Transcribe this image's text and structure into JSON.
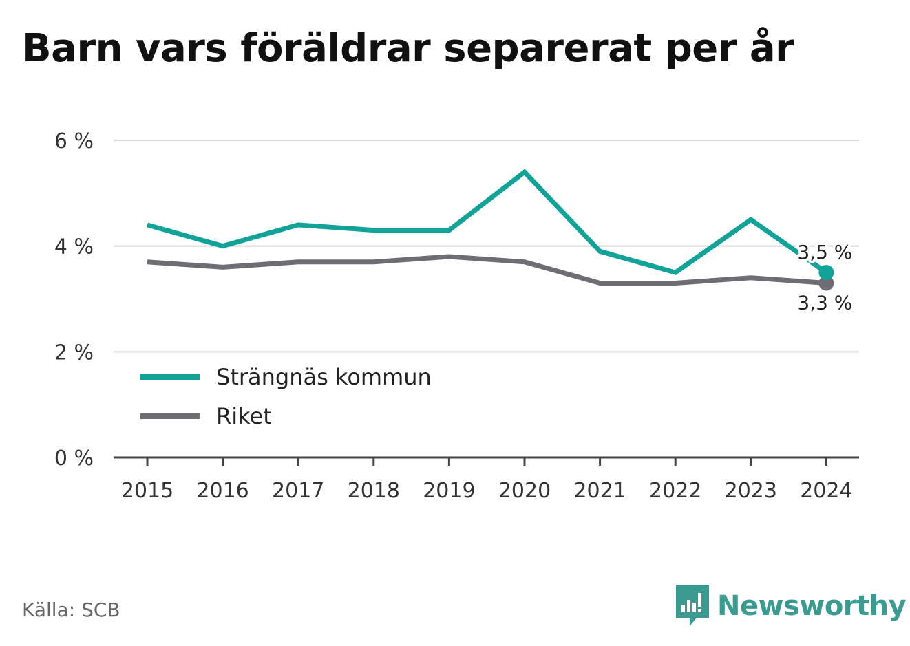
{
  "title": "Barn vars föräldrar separerat per år",
  "source": "Källa: SCB",
  "brand": "Newsworthy",
  "colors": {
    "strangnas": "#12a398",
    "riket": "#6e6d73",
    "grid": "#d8d8d8",
    "axis": "#444444"
  },
  "chart_data": {
    "type": "line",
    "x": [
      "2015",
      "2016",
      "2017",
      "2018",
      "2019",
      "2020",
      "2021",
      "2022",
      "2023",
      "2024"
    ],
    "ylim": [
      0,
      6
    ],
    "yticks": [
      0,
      2,
      4,
      6
    ],
    "ytick_labels": [
      "0 %",
      "2 %",
      "4 %",
      "6 %"
    ],
    "grid": true,
    "legend_position": "bottom-left",
    "series": [
      {
        "name": "Strängnäs kommun",
        "color": "#12a398",
        "values": [
          4.4,
          4.0,
          4.4,
          4.3,
          4.3,
          5.4,
          3.9,
          3.5,
          4.5,
          3.5
        ],
        "end_label": "3,5 %"
      },
      {
        "name": "Riket",
        "color": "#6e6d73",
        "values": [
          3.7,
          3.6,
          3.7,
          3.7,
          3.8,
          3.7,
          3.3,
          3.3,
          3.4,
          3.3
        ],
        "end_label": "3,3 %"
      }
    ]
  }
}
